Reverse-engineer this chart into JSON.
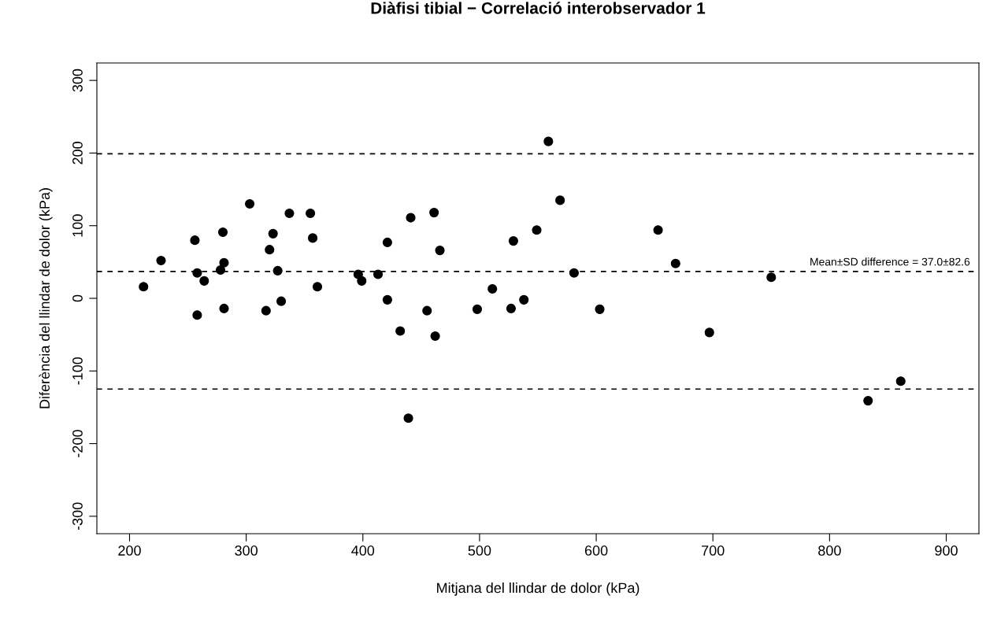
{
  "chart_data": {
    "type": "scatter",
    "title": "Diàfisi tibial − Correlació interobservador 1",
    "xlabel": "Mitjana del llindar de dolor (kPa)",
    "ylabel": "Diferència del llindar de dolor (kPa)",
    "x": [
      212,
      227,
      256,
      258,
      258,
      264,
      278,
      280,
      281,
      281,
      303,
      317,
      320,
      323,
      327,
      330,
      337,
      355,
      357,
      361,
      396,
      399,
      413,
      421,
      421,
      432,
      439,
      441,
      455,
      461,
      462,
      466,
      498,
      511,
      527,
      529,
      538,
      549,
      559,
      569,
      581,
      603,
      653,
      668,
      697,
      750,
      833,
      861
    ],
    "series": [
      {
        "color": "#000000",
        "values": [
          16,
          52,
          80,
          35,
          -23,
          24,
          39,
          91,
          49,
          -14,
          130,
          -17,
          67,
          89,
          38,
          -4,
          117,
          117,
          83,
          16,
          33,
          24,
          33,
          77,
          -2,
          -45,
          -165,
          111,
          -17,
          118,
          -52,
          66,
          -15,
          13,
          -14,
          79,
          -2,
          94,
          216,
          135,
          35,
          -15,
          94,
          48,
          -47,
          29,
          -141,
          -114
        ]
      }
    ],
    "marker": "circle",
    "grid": false,
    "legend": false,
    "xlim": [
      172,
      928
    ],
    "ylim": [
      -324,
      324
    ],
    "xticks": [
      200,
      300,
      400,
      500,
      600,
      700,
      800,
      900
    ],
    "yticks": [
      -300,
      -200,
      -100,
      0,
      100,
      200,
      300
    ],
    "ref_lines": [
      {
        "axis": "y",
        "value": 198.9,
        "line_style": "dashed",
        "color": "#000000"
      },
      {
        "axis": "y",
        "value": 37.0,
        "label": "Mean±SD difference = 37.0±82.6",
        "line_style": "dashed",
        "color": "#000000"
      },
      {
        "axis": "y",
        "value": -124.9,
        "line_style": "dashed",
        "color": "#000000"
      }
    ]
  }
}
